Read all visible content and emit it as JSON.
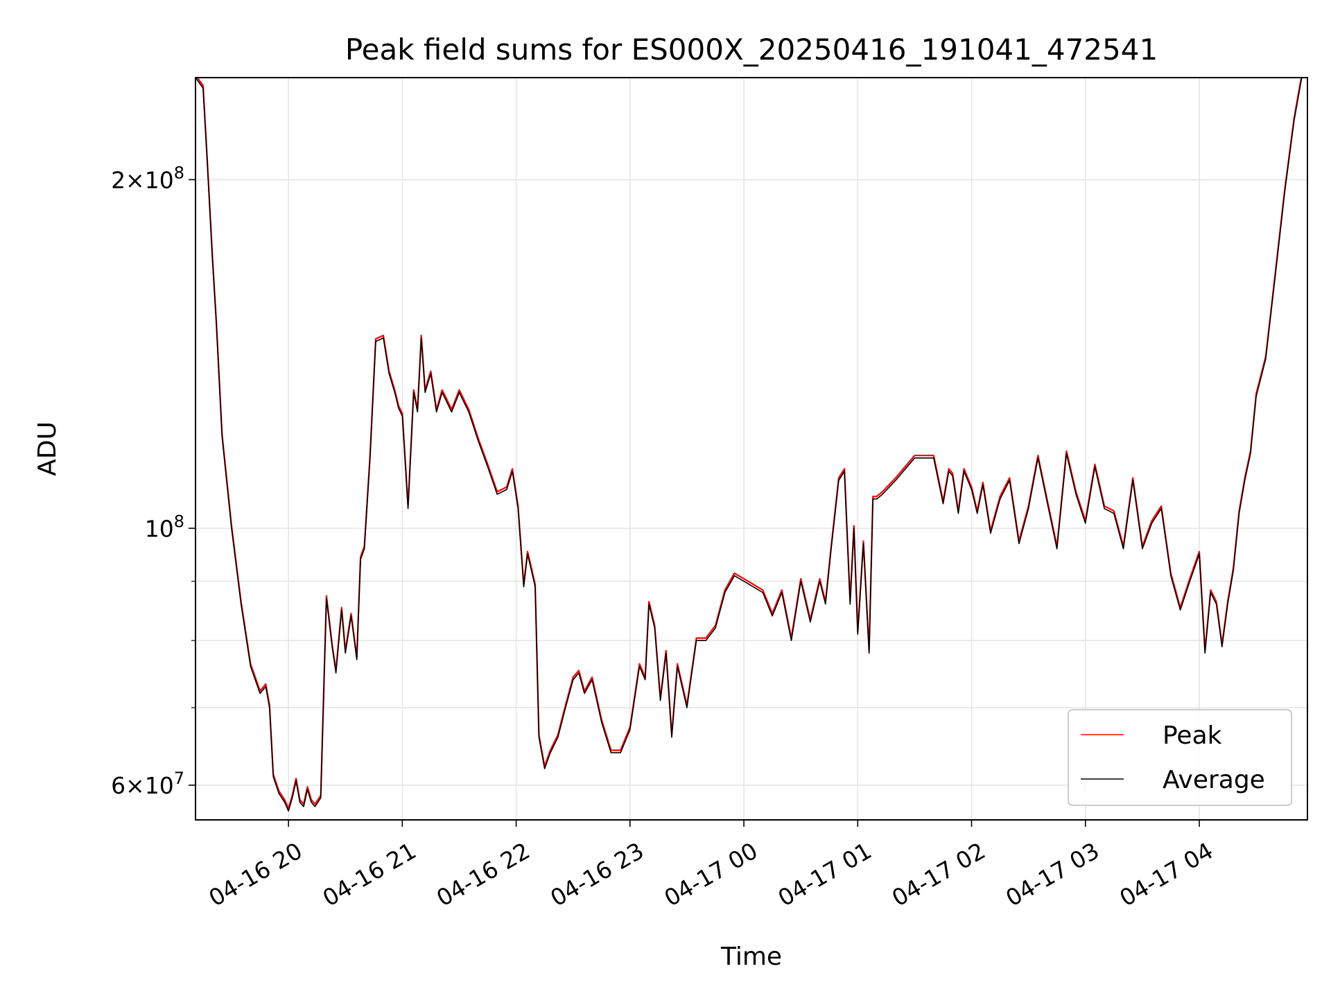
{
  "chart_data": {
    "type": "line",
    "title": "Peak field sums for ES000X_20250416_191041_472541",
    "xlabel": "Time",
    "ylabel": "ADU",
    "yscale": "log",
    "ylim": [
      56000000,
      245000000
    ],
    "xlim": [
      "04-16 19:11",
      "04-17 04:57"
    ],
    "grid": true,
    "legend": "lower right",
    "x_ticks": [
      "04-16 20",
      "04-16 21",
      "04-16 22",
      "04-16 23",
      "04-17 00",
      "04-17 01",
      "04-17 02",
      "04-17 03",
      "04-17 04"
    ],
    "y_ticks_major": [
      {
        "value": 60000000,
        "mant": "6",
        "exp": "7"
      },
      {
        "value": 100000000,
        "mant": "",
        "exp": "8"
      },
      {
        "value": 200000000,
        "mant": "2",
        "exp": "8"
      }
    ],
    "y_ticks_minor": [
      70000000,
      80000000,
      90000000
    ],
    "series": [
      {
        "name": "Peak",
        "color": "#ff0000",
        "offset": 0.005
      },
      {
        "name": "Average",
        "color": "#000000",
        "offset": 0.0
      }
    ],
    "x": [
      "04-16 19:11",
      "04-16 19:15",
      "04-16 19:17",
      "04-16 19:20",
      "04-16 19:22",
      "04-16 19:25",
      "04-16 19:30",
      "04-16 19:35",
      "04-16 19:40",
      "04-16 19:45",
      "04-16 19:48",
      "04-16 19:50",
      "04-16 19:52",
      "04-16 19:55",
      "04-16 19:58",
      "04-16 20:00",
      "04-16 20:02",
      "04-16 20:04",
      "04-16 20:06",
      "04-16 20:08",
      "04-16 20:10",
      "04-16 20:12",
      "04-16 20:14",
      "04-16 20:17",
      "04-16 20:20",
      "04-16 20:23",
      "04-16 20:25",
      "04-16 20:28",
      "04-16 20:30",
      "04-16 20:33",
      "04-16 20:36",
      "04-16 20:38",
      "04-16 20:40",
      "04-16 20:43",
      "04-16 20:46",
      "04-16 20:50",
      "04-16 20:53",
      "04-16 20:56",
      "04-16 20:58",
      "04-16 21:00",
      "04-16 21:03",
      "04-16 21:06",
      "04-16 21:08",
      "04-16 21:10",
      "04-16 21:12",
      "04-16 21:15",
      "04-16 21:18",
      "04-16 21:21",
      "04-16 21:23",
      "04-16 21:26",
      "04-16 21:30",
      "04-16 21:35",
      "04-16 21:40",
      "04-16 21:45",
      "04-16 21:50",
      "04-16 21:55",
      "04-16 21:58",
      "04-16 22:01",
      "04-16 22:04",
      "04-16 22:06",
      "04-16 22:08",
      "04-16 22:10",
      "04-16 22:12",
      "04-16 22:15",
      "04-16 22:18",
      "04-16 22:22",
      "04-16 22:26",
      "04-16 22:30",
      "04-16 22:33",
      "04-16 22:36",
      "04-16 22:40",
      "04-16 22:45",
      "04-16 22:50",
      "04-16 22:55",
      "04-16 23:00",
      "04-16 23:05",
      "04-16 23:08",
      "04-16 23:10",
      "04-16 23:13",
      "04-16 23:16",
      "04-16 23:19",
      "04-16 23:22",
      "04-16 23:25",
      "04-16 23:30",
      "04-16 23:35",
      "04-16 23:40",
      "04-16 23:45",
      "04-16 23:50",
      "04-16 23:55",
      "04-17 00:00",
      "04-17 00:05",
      "04-17 00:10",
      "04-17 00:15",
      "04-17 00:20",
      "04-17 00:25",
      "04-17 00:30",
      "04-17 00:35",
      "04-17 00:40",
      "04-17 00:43",
      "04-17 00:46",
      "04-17 00:50",
      "04-17 00:53",
      "04-17 00:56",
      "04-17 00:58",
      "04-17 01:00",
      "04-17 01:03",
      "04-17 01:06",
      "04-17 01:08",
      "04-17 01:10",
      "04-17 01:13",
      "04-17 01:20",
      "04-17 01:30",
      "04-17 01:40",
      "04-17 01:45",
      "04-17 01:48",
      "04-17 01:50",
      "04-17 01:53",
      "04-17 01:56",
      "04-17 02:00",
      "04-17 02:03",
      "04-17 02:06",
      "04-17 02:10",
      "04-17 02:15",
      "04-17 02:20",
      "04-17 02:25",
      "04-17 02:30",
      "04-17 02:35",
      "04-17 02:40",
      "04-17 02:45",
      "04-17 02:50",
      "04-17 02:55",
      "04-17 03:00",
      "04-17 03:05",
      "04-17 03:10",
      "04-17 03:15",
      "04-17 03:20",
      "04-17 03:25",
      "04-17 03:30",
      "04-17 03:35",
      "04-17 03:40",
      "04-17 03:45",
      "04-17 03:50",
      "04-17 03:55",
      "04-17 04:00",
      "04-17 04:03",
      "04-17 04:06",
      "04-17 04:09",
      "04-17 04:12",
      "04-17 04:15",
      "04-17 04:18",
      "04-17 04:21",
      "04-17 04:24",
      "04-17 04:27",
      "04-17 04:30",
      "04-17 04:35",
      "04-17 04:40",
      "04-17 04:45",
      "04-17 04:50",
      "04-17 04:54",
      "04-17 04:57"
    ],
    "y": [
      245000000,
      240000000,
      210000000,
      170000000,
      150000000,
      120000000,
      100000000,
      86000000,
      76000000,
      72000000,
      73000000,
      70000000,
      61000000,
      59000000,
      58000000,
      57000000,
      58500000,
      60500000,
      58000000,
      57500000,
      59500000,
      58000000,
      57500000,
      58500000,
      87000000,
      79000000,
      75000000,
      85000000,
      78000000,
      84000000,
      77000000,
      94000000,
      96000000,
      115000000,
      145000000,
      146000000,
      136000000,
      131000000,
      127000000,
      125000000,
      104000000,
      131000000,
      126000000,
      146000000,
      131000000,
      136000000,
      126000000,
      131000000,
      129000000,
      126000000,
      131000000,
      126000000,
      119000000,
      113000000,
      107000000,
      108000000,
      112000000,
      104000000,
      89000000,
      95000000,
      92000000,
      89000000,
      66000000,
      62000000,
      64000000,
      66000000,
      70000000,
      74000000,
      75000000,
      72000000,
      74000000,
      68000000,
      64000000,
      64000000,
      67000000,
      76000000,
      74000000,
      86000000,
      82000000,
      71000000,
      78000000,
      66000000,
      76000000,
      70000000,
      80000000,
      80000000,
      82000000,
      88000000,
      91000000,
      90000000,
      89000000,
      88000000,
      84000000,
      88000000,
      80000000,
      90000000,
      83000000,
      90000000,
      86000000,
      96000000,
      110000000,
      112000000,
      86000000,
      100000000,
      81000000,
      97000000,
      78000000,
      106000000,
      106000000,
      107000000,
      110000000,
      115000000,
      115000000,
      105000000,
      112000000,
      111000000,
      103000000,
      112000000,
      108000000,
      103000000,
      109000000,
      99000000,
      106000000,
      110000000,
      97000000,
      104000000,
      115000000,
      105000000,
      96000000,
      116000000,
      107000000,
      101000000,
      113000000,
      104000000,
      103000000,
      96000000,
      110000000,
      96000000,
      101000000,
      104000000,
      91000000,
      85000000,
      90000000,
      95000000,
      78000000,
      88000000,
      86000000,
      79000000,
      86000000,
      92000000,
      103000000,
      110000000,
      116000000,
      130000000,
      140000000,
      165000000,
      195000000,
      225000000,
      245000000,
      245000000
    ]
  }
}
